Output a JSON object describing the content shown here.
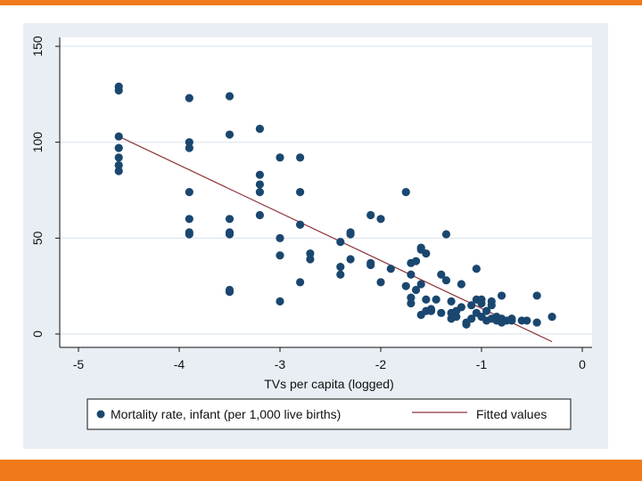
{
  "colors": {
    "accent": "#f07a1a",
    "frame_bg": "#e8eef3",
    "grid": "#dde6ee",
    "marker": "#1a476f",
    "fit_line": "#90353b"
  },
  "chart_data": {
    "type": "scatter",
    "title": "",
    "xlabel": "TVs per capita (logged)",
    "ylabel": "",
    "xlim": [
      -5,
      0
    ],
    "ylim": [
      0,
      150
    ],
    "x_ticks": [
      -5,
      -4,
      -3,
      -2,
      -1,
      0
    ],
    "y_ticks": [
      0,
      50,
      100,
      150
    ],
    "x_tick_labels": [
      "-5",
      "-4",
      "-3",
      "-2",
      "-1",
      "0"
    ],
    "y_tick_labels": [
      "0",
      "50",
      "100",
      "150"
    ],
    "legend": [
      "Mortality rate, infant (per 1,000 live births)",
      "Fitted values"
    ],
    "legend_position": "bottom",
    "series": [
      {
        "name": "Mortality rate, infant (per 1,000 live births)",
        "kind": "scatter",
        "points": [
          [
            -4.6,
            129
          ],
          [
            -4.6,
            127
          ],
          [
            -4.6,
            103
          ],
          [
            -4.6,
            97
          ],
          [
            -4.6,
            92
          ],
          [
            -4.6,
            88
          ],
          [
            -4.6,
            85
          ],
          [
            -3.9,
            123
          ],
          [
            -3.9,
            100
          ],
          [
            -3.9,
            97
          ],
          [
            -3.9,
            74
          ],
          [
            -3.9,
            60
          ],
          [
            -3.9,
            53
          ],
          [
            -3.9,
            52
          ],
          [
            -3.5,
            124
          ],
          [
            -3.5,
            104
          ],
          [
            -3.5,
            60
          ],
          [
            -3.5,
            53
          ],
          [
            -3.5,
            52
          ],
          [
            -3.5,
            23
          ],
          [
            -3.5,
            22
          ],
          [
            -3.2,
            107
          ],
          [
            -3.2,
            83
          ],
          [
            -3.2,
            78
          ],
          [
            -3.2,
            74
          ],
          [
            -3.2,
            62
          ],
          [
            -3.0,
            92
          ],
          [
            -3.0,
            50
          ],
          [
            -3.0,
            41
          ],
          [
            -3.0,
            17
          ],
          [
            -2.8,
            92
          ],
          [
            -2.8,
            74
          ],
          [
            -2.8,
            57
          ],
          [
            -2.8,
            27
          ],
          [
            -2.7,
            42
          ],
          [
            -2.7,
            39
          ],
          [
            -2.4,
            48
          ],
          [
            -2.4,
            35
          ],
          [
            -2.4,
            31
          ],
          [
            -2.3,
            53
          ],
          [
            -2.3,
            52
          ],
          [
            -2.3,
            39
          ],
          [
            -2.1,
            62
          ],
          [
            -2.1,
            37
          ],
          [
            -2.1,
            36
          ],
          [
            -2.0,
            60
          ],
          [
            -2.0,
            27
          ],
          [
            -1.9,
            34
          ],
          [
            -1.75,
            74
          ],
          [
            -1.75,
            25
          ],
          [
            -1.7,
            37
          ],
          [
            -1.7,
            31
          ],
          [
            -1.7,
            19
          ],
          [
            -1.7,
            16
          ],
          [
            -1.65,
            38
          ],
          [
            -1.65,
            23
          ],
          [
            -1.6,
            45
          ],
          [
            -1.6,
            44
          ],
          [
            -1.6,
            26
          ],
          [
            -1.6,
            10
          ],
          [
            -1.55,
            42
          ],
          [
            -1.55,
            18
          ],
          [
            -1.55,
            12
          ],
          [
            -1.5,
            13
          ],
          [
            -1.5,
            12
          ],
          [
            -1.45,
            18
          ],
          [
            -1.4,
            31
          ],
          [
            -1.4,
            11
          ],
          [
            -1.35,
            52
          ],
          [
            -1.35,
            28
          ],
          [
            -1.3,
            17
          ],
          [
            -1.3,
            11
          ],
          [
            -1.3,
            8
          ],
          [
            -1.25,
            12
          ],
          [
            -1.25,
            9
          ],
          [
            -1.2,
            26
          ],
          [
            -1.2,
            14
          ],
          [
            -1.15,
            6
          ],
          [
            -1.15,
            5
          ],
          [
            -1.1,
            15
          ],
          [
            -1.1,
            8
          ],
          [
            -1.05,
            34
          ],
          [
            -1.05,
            18
          ],
          [
            -1.05,
            11
          ],
          [
            -1.0,
            18
          ],
          [
            -1.0,
            16
          ],
          [
            -1.0,
            9
          ],
          [
            -0.95,
            12
          ],
          [
            -0.95,
            7
          ],
          [
            -0.9,
            17
          ],
          [
            -0.9,
            15
          ],
          [
            -0.9,
            8
          ],
          [
            -0.85,
            9
          ],
          [
            -0.85,
            7
          ],
          [
            -0.8,
            20
          ],
          [
            -0.8,
            8
          ],
          [
            -0.8,
            6
          ],
          [
            -0.75,
            7
          ],
          [
            -0.7,
            8
          ],
          [
            -0.7,
            7
          ],
          [
            -0.6,
            7
          ],
          [
            -0.55,
            7
          ],
          [
            -0.45,
            20
          ],
          [
            -0.45,
            6
          ],
          [
            -0.3,
            9
          ]
        ]
      },
      {
        "name": "Fitted values",
        "kind": "line",
        "points": [
          [
            -4.6,
            103
          ],
          [
            -0.3,
            -4
          ]
        ]
      }
    ]
  }
}
